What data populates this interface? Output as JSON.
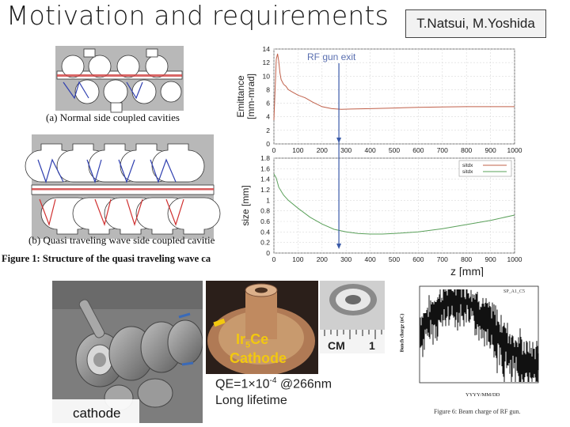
{
  "slide": {
    "title": "Motivation and requirements",
    "authors": "T.Natsui, M.Yoshida"
  },
  "cavity_figure": {
    "caption_a": "(a)   Normal side coupled cavities",
    "caption_b": "(b)   Quasi traveling wave side coupled cavitie",
    "caption_fig": "Figure 1: Structure of the quasi traveling wave ca"
  },
  "photos": {
    "cathode_label": "cathode",
    "material_sub": "5",
    "material_ce": "Ce",
    "material_ir": "Ir",
    "cathode_word": "Cathode",
    "ruler_text": "CM",
    "ruler_num": "1",
    "qe_text": "QE=1×10",
    "qe_exp": "-4",
    "qe_suffix": " @266nm",
    "lifetime": "Long lifetime"
  },
  "beam_figure": {
    "caption": "Figure 6: Beam charge of RF gun.",
    "legend": "SP_A1_C5",
    "ylabel": "Bunch charge (nC)",
    "xlabel": "YYYY/MM/DD"
  },
  "annotation": {
    "rf_gun_exit": "RF gun exit"
  },
  "colors": {
    "emittance_line": "#c0604a",
    "size_line_green": "#5aa05a",
    "arrow_blue": "#3a5aa8",
    "cathode_text": "#f2c80f",
    "annotation_text": "#5a6fb0"
  },
  "chart_data": [
    {
      "type": "line",
      "title": "",
      "xlabel": "",
      "ylabel": "Emittance [mm-mrad]",
      "xlim": [
        0,
        1000
      ],
      "ylim": [
        0,
        14
      ],
      "xticks": [
        0,
        100,
        200,
        300,
        400,
        500,
        600,
        700,
        800,
        900,
        1000
      ],
      "yticks": [
        0,
        2,
        4,
        6,
        8,
        10,
        12,
        14
      ],
      "grid": true,
      "series": [
        {
          "x": [
            0,
            5,
            10,
            15,
            20,
            25,
            30,
            40,
            50,
            60,
            80,
            100,
            130,
            160,
            200,
            240,
            280,
            320,
            400,
            500,
            600,
            700,
            800,
            900,
            1000
          ],
          "y": [
            3.5,
            8,
            12.5,
            13.3,
            12.2,
            10.5,
            9.5,
            8.8,
            8.5,
            8.0,
            7.6,
            7.2,
            6.8,
            6.2,
            5.5,
            5.2,
            5.1,
            5.15,
            5.2,
            5.3,
            5.4,
            5.45,
            5.5,
            5.5,
            5.5
          ]
        }
      ]
    },
    {
      "type": "line",
      "title": "",
      "xlabel": "z [mm]",
      "ylabel": "size [mm]",
      "xlim": [
        0,
        1000
      ],
      "ylim": [
        0,
        1.8
      ],
      "xticks": [
        0,
        100,
        200,
        300,
        400,
        500,
        600,
        700,
        800,
        900,
        1000
      ],
      "yticks": [
        0,
        0.2,
        0.4,
        0.6,
        0.8,
        1.0,
        1.2,
        1.4,
        1.6,
        1.8
      ],
      "ytick_labels": [
        "0",
        "0.2",
        "0.4",
        "0.6",
        "0.8",
        "1",
        "1.2",
        "1.4",
        "1.6",
        "1.8"
      ],
      "grid": true,
      "legend": [
        "sitdx",
        "sitdx"
      ],
      "legend_position": "top-right",
      "series": [
        {
          "x": [
            0,
            10,
            20,
            40,
            60,
            100,
            150,
            200,
            250,
            300,
            350,
            400,
            450,
            500,
            600,
            700,
            800,
            900,
            1000
          ],
          "y": [
            1.5,
            1.42,
            1.25,
            1.1,
            1.0,
            0.85,
            0.68,
            0.55,
            0.45,
            0.4,
            0.37,
            0.36,
            0.36,
            0.37,
            0.4,
            0.46,
            0.54,
            0.62,
            0.72
          ]
        }
      ]
    }
  ]
}
